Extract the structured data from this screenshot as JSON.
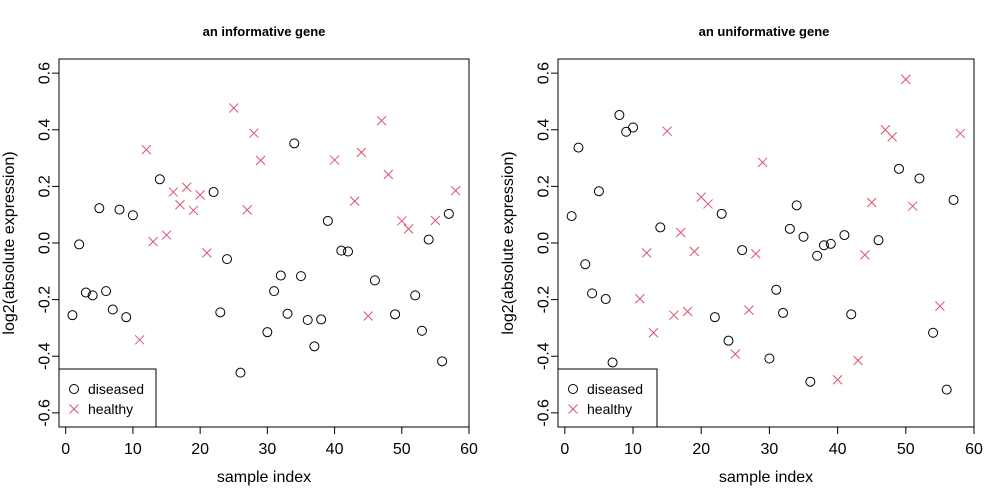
{
  "chart_data": [
    {
      "type": "scatter",
      "title": "an informative gene",
      "xlabel": "sample index",
      "ylabel": "log2(absolute expression)",
      "xlim": [
        -1,
        60
      ],
      "ylim": [
        -0.65,
        0.65
      ],
      "xticks": [
        0,
        10,
        20,
        30,
        40,
        50,
        60
      ],
      "yticks": [
        -0.6,
        -0.4,
        -0.2,
        0.0,
        0.2,
        0.4,
        0.6
      ],
      "legend": {
        "position": "bottom-left",
        "entries": [
          {
            "name": "diseased",
            "marker": "circle",
            "color": "#000000"
          },
          {
            "name": "healthy",
            "marker": "cross",
            "color": "#df536b"
          }
        ]
      },
      "series": [
        {
          "name": "diseased",
          "points": [
            [
              1,
              -0.255
            ],
            [
              2,
              -0.005
            ],
            [
              3,
              -0.175
            ],
            [
              4,
              -0.185
            ],
            [
              5,
              0.123
            ],
            [
              6,
              -0.17
            ],
            [
              7,
              -0.235
            ],
            [
              8,
              0.118
            ],
            [
              9,
              -0.262
            ],
            [
              10,
              0.098
            ],
            [
              14,
              0.225
            ],
            [
              22,
              0.18
            ],
            [
              23,
              -0.245
            ],
            [
              24,
              -0.057
            ],
            [
              26,
              -0.458
            ],
            [
              30,
              -0.315
            ],
            [
              31,
              -0.17
            ],
            [
              32,
              -0.115
            ],
            [
              33,
              -0.25
            ],
            [
              34,
              0.352
            ],
            [
              35,
              -0.117
            ],
            [
              36,
              -0.272
            ],
            [
              37,
              -0.365
            ],
            [
              38,
              -0.27
            ],
            [
              39,
              0.078
            ],
            [
              41,
              -0.027
            ],
            [
              42,
              -0.03
            ],
            [
              46,
              -0.132
            ],
            [
              49,
              -0.252
            ],
            [
              52,
              -0.185
            ],
            [
              53,
              -0.31
            ],
            [
              54,
              0.012
            ],
            [
              56,
              -0.418
            ],
            [
              57,
              0.103
            ]
          ]
        },
        {
          "name": "healthy",
          "points": [
            [
              11,
              -0.342
            ],
            [
              12,
              0.33
            ],
            [
              13,
              0.005
            ],
            [
              15,
              0.028
            ],
            [
              16,
              0.18
            ],
            [
              17,
              0.135
            ],
            [
              18,
              0.197
            ],
            [
              19,
              0.115
            ],
            [
              20,
              0.17
            ],
            [
              21,
              -0.035
            ],
            [
              25,
              0.477
            ],
            [
              27,
              0.117
            ],
            [
              28,
              0.388
            ],
            [
              29,
              0.292
            ],
            [
              40,
              0.293
            ],
            [
              43,
              0.148
            ],
            [
              44,
              0.32
            ],
            [
              45,
              -0.258
            ],
            [
              47,
              0.432
            ],
            [
              48,
              0.242
            ],
            [
              50,
              0.078
            ],
            [
              51,
              0.05
            ],
            [
              55,
              0.08
            ],
            [
              58,
              0.185
            ]
          ]
        }
      ]
    },
    {
      "type": "scatter",
      "title": "an uniformative gene",
      "xlabel": "sample index",
      "ylabel": "log2(absolute expression)",
      "xlim": [
        -1,
        60
      ],
      "ylim": [
        -0.65,
        0.65
      ],
      "xticks": [
        0,
        10,
        20,
        30,
        40,
        50,
        60
      ],
      "yticks": [
        -0.6,
        -0.4,
        -0.2,
        0.0,
        0.2,
        0.4,
        0.6
      ],
      "legend": {
        "position": "bottom-left",
        "entries": [
          {
            "name": "diseased",
            "marker": "circle",
            "color": "#000000"
          },
          {
            "name": "healthy",
            "marker": "cross",
            "color": "#df536b"
          }
        ]
      },
      "series": [
        {
          "name": "diseased",
          "points": [
            [
              1,
              0.095
            ],
            [
              2,
              0.337
            ],
            [
              3,
              -0.075
            ],
            [
              4,
              -0.178
            ],
            [
              5,
              0.183
            ],
            [
              6,
              -0.198
            ],
            [
              7,
              -0.422
            ],
            [
              8,
              0.452
            ],
            [
              9,
              0.393
            ],
            [
              10,
              0.408
            ],
            [
              14,
              0.055
            ],
            [
              22,
              -0.262
            ],
            [
              23,
              0.103
            ],
            [
              24,
              -0.345
            ],
            [
              26,
              -0.025
            ],
            [
              30,
              -0.408
            ],
            [
              31,
              -0.165
            ],
            [
              32,
              -0.247
            ],
            [
              33,
              0.05
            ],
            [
              34,
              0.133
            ],
            [
              35,
              0.022
            ],
            [
              36,
              -0.49
            ],
            [
              37,
              -0.045
            ],
            [
              38,
              -0.008
            ],
            [
              39,
              -0.003
            ],
            [
              41,
              0.028
            ],
            [
              42,
              -0.252
            ],
            [
              46,
              0.01
            ],
            [
              49,
              0.262
            ],
            [
              52,
              0.228
            ],
            [
              54,
              -0.317
            ],
            [
              56,
              -0.518
            ],
            [
              57,
              0.152
            ]
          ]
        },
        {
          "name": "healthy",
          "points": [
            [
              11,
              -0.197
            ],
            [
              12,
              -0.035
            ],
            [
              13,
              -0.317
            ],
            [
              15,
              0.395
            ],
            [
              16,
              -0.255
            ],
            [
              17,
              0.037
            ],
            [
              18,
              -0.242
            ],
            [
              19,
              -0.03
            ],
            [
              20,
              0.162
            ],
            [
              21,
              0.138
            ],
            [
              25,
              -0.392
            ],
            [
              27,
              -0.237
            ],
            [
              28,
              -0.038
            ],
            [
              29,
              0.285
            ],
            [
              40,
              -0.483
            ],
            [
              43,
              -0.415
            ],
            [
              44,
              -0.042
            ],
            [
              45,
              0.143
            ],
            [
              47,
              0.4
            ],
            [
              48,
              0.375
            ],
            [
              50,
              0.578
            ],
            [
              51,
              0.13
            ],
            [
              55,
              -0.223
            ],
            [
              58,
              0.387
            ]
          ]
        }
      ]
    }
  ]
}
